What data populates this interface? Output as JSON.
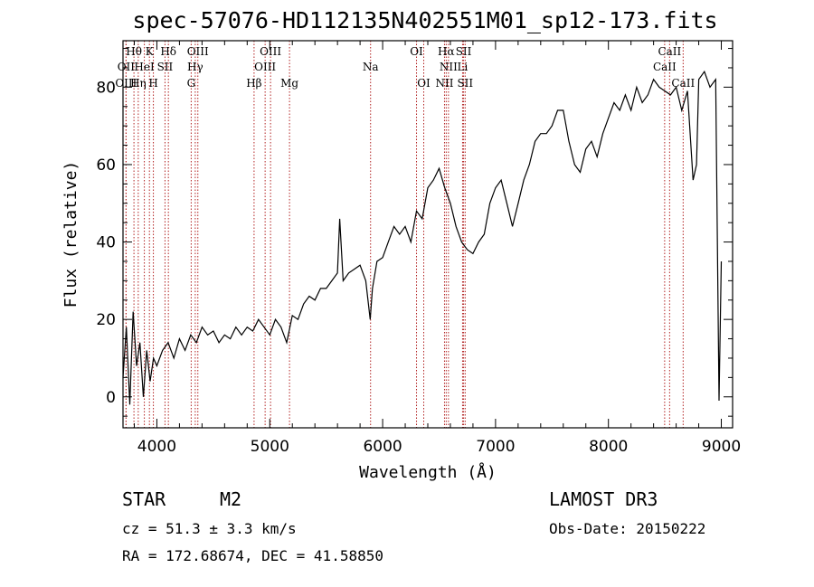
{
  "chart_data": {
    "type": "line",
    "title": "spec-57076-HD112135N402551M01_sp12-173.fits",
    "xlabel": "Wavelength (Å)",
    "ylabel": "Flux (relative)",
    "xlim": [
      3700,
      9100
    ],
    "ylim": [
      -8,
      92
    ],
    "xticks": [
      4000,
      5000,
      6000,
      7000,
      8000,
      9000
    ],
    "yticks": [
      0,
      20,
      40,
      60,
      80
    ],
    "grid": false,
    "series": [
      {
        "name": "spectrum",
        "x": [
          3700,
          3730,
          3760,
          3790,
          3820,
          3850,
          3880,
          3910,
          3940,
          3970,
          4000,
          4050,
          4100,
          4150,
          4200,
          4250,
          4300,
          4350,
          4400,
          4450,
          4500,
          4550,
          4600,
          4650,
          4700,
          4750,
          4800,
          4850,
          4900,
          4950,
          5000,
          5050,
          5100,
          5150,
          5200,
          5250,
          5300,
          5350,
          5400,
          5450,
          5500,
          5550,
          5600,
          5620,
          5650,
          5700,
          5750,
          5800,
          5850,
          5890,
          5910,
          5950,
          6000,
          6050,
          6100,
          6150,
          6200,
          6250,
          6300,
          6350,
          6400,
          6450,
          6500,
          6550,
          6600,
          6650,
          6700,
          6750,
          6800,
          6850,
          6900,
          6950,
          7000,
          7050,
          7100,
          7150,
          7200,
          7250,
          7300,
          7350,
          7400,
          7450,
          7500,
          7550,
          7600,
          7650,
          7700,
          7750,
          7800,
          7850,
          7900,
          7950,
          8000,
          8050,
          8100,
          8150,
          8200,
          8250,
          8300,
          8350,
          8400,
          8450,
          8500,
          8550,
          8600,
          8650,
          8700,
          8750,
          8780,
          8800,
          8850,
          8900,
          8950,
          8980,
          9000
        ],
        "values": [
          5,
          18,
          -2,
          22,
          8,
          14,
          0,
          12,
          4,
          10,
          8,
          12,
          14,
          10,
          15,
          12,
          16,
          14,
          18,
          16,
          17,
          14,
          16,
          15,
          18,
          16,
          18,
          17,
          20,
          18,
          16,
          20,
          18,
          14,
          21,
          20,
          24,
          26,
          25,
          28,
          28,
          30,
          32,
          46,
          30,
          32,
          33,
          34,
          30,
          20,
          28,
          35,
          36,
          40,
          44,
          42,
          44,
          40,
          48,
          46,
          54,
          56,
          59,
          54,
          50,
          44,
          40,
          38,
          37,
          40,
          42,
          50,
          54,
          56,
          50,
          44,
          50,
          56,
          60,
          66,
          68,
          68,
          70,
          74,
          74,
          66,
          60,
          58,
          64,
          66,
          62,
          68,
          72,
          76,
          74,
          78,
          74,
          80,
          76,
          78,
          82,
          80,
          79,
          78,
          80,
          74,
          79,
          56,
          60,
          82,
          84,
          80,
          82,
          -1,
          35
        ]
      }
    ],
    "lines_top": [
      {
        "label": "Hθ",
        "x": 3797
      },
      {
        "label": "K",
        "x": 3934
      },
      {
        "label": "Hδ",
        "x": 4102
      },
      {
        "label": "OIII",
        "x": 4363
      },
      {
        "label": "OIII",
        "x": 5007
      },
      {
        "label": "OI",
        "x": 6300
      },
      {
        "label": "Hα",
        "x": 6563
      },
      {
        "label": "SII",
        "x": 6717
      },
      {
        "label": "CaII",
        "x": 8542
      }
    ],
    "lines_mid": [
      {
        "label": "OII",
        "x": 3727
      },
      {
        "label": "HeI",
        "x": 3889
      },
      {
        "label": "SII",
        "x": 4072
      },
      {
        "label": "Hγ",
        "x": 4340
      },
      {
        "label": "OIII",
        "x": 4959
      },
      {
        "label": "Na",
        "x": 5893
      },
      {
        "label": "NII",
        "x": 6583
      },
      {
        "label": "Li",
        "x": 6708
      },
      {
        "label": "CaII",
        "x": 8498
      }
    ],
    "lines_bot": [
      {
        "label": "OIII",
        "x": 3727
      },
      {
        "label": "Hη",
        "x": 3835
      },
      {
        "label": "H",
        "x": 3969
      },
      {
        "label": "G",
        "x": 4304
      },
      {
        "label": "Hβ",
        "x": 4861
      },
      {
        "label": "Mg",
        "x": 5175
      },
      {
        "label": "OI",
        "x": 6364
      },
      {
        "label": "NII",
        "x": 6548
      },
      {
        "label": "SII",
        "x": 6731
      },
      {
        "label": "CaII",
        "x": 8662
      }
    ]
  },
  "info": {
    "class": "STAR",
    "subclass": "M2",
    "survey": "LAMOST DR3",
    "cz": "cz = 51.3 ± 3.3 km/s",
    "obs_date": "Obs-Date: 20150222",
    "coords": "RA = 172.68674, DEC =  41.58850"
  },
  "colors": {
    "line_marker": "#b22222",
    "spectrum": "#000000"
  }
}
